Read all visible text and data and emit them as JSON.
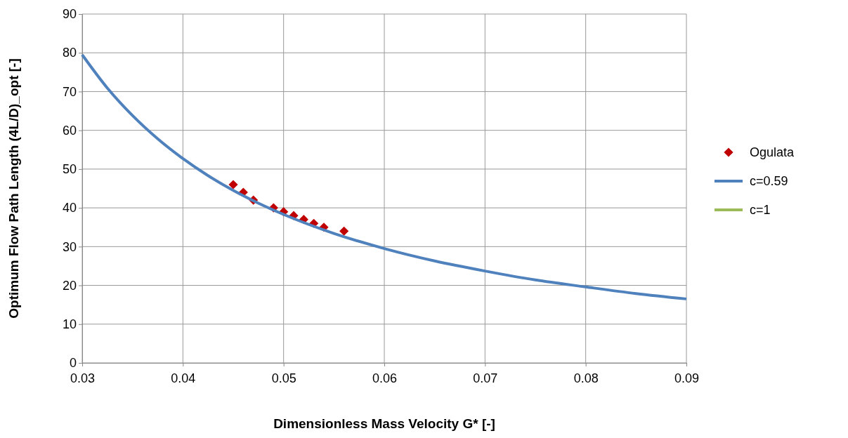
{
  "chart_data": {
    "type": "line",
    "xlabel": "Dimensionless Mass Velocity G* [-]",
    "ylabel": "Optimum Flow Path Length (4L/D)_opt [-]",
    "xlim": [
      0.03,
      0.09
    ],
    "xticks": [
      {
        "value": 0.03,
        "label": "0.03"
      },
      {
        "value": 0.04,
        "label": "0.04"
      },
      {
        "value": 0.05,
        "label": "0.05"
      },
      {
        "value": 0.06,
        "label": "0.06"
      },
      {
        "value": 0.07,
        "label": "0.07"
      },
      {
        "value": 0.08,
        "label": "0.08"
      },
      {
        "value": 0.09,
        "label": "0.09"
      }
    ],
    "ylim": [
      0,
      90
    ],
    "yticks": [
      0,
      10,
      20,
      30,
      40,
      50,
      60,
      70,
      80,
      90
    ],
    "grid": true,
    "legend": "right",
    "series": [
      {
        "name": "Ogulata",
        "type": "scatter",
        "marker": "diamond",
        "color": "#c00000",
        "x": [
          0.045,
          0.046,
          0.047,
          0.049,
          0.05,
          0.051,
          0.052,
          0.053,
          0.054,
          0.056
        ],
        "values": [
          46,
          44,
          42,
          40,
          39,
          38,
          37,
          36,
          35,
          34
        ]
      },
      {
        "name": "c=0.59",
        "marker": "none",
        "color": "#4f81bd",
        "x": [
          0.03,
          0.0325,
          0.035,
          0.0375,
          0.04,
          0.0425,
          0.045,
          0.0475,
          0.05,
          0.055,
          0.06,
          0.065,
          0.07,
          0.075,
          0.08,
          0.085,
          0.09
        ],
        "values": [
          79.5,
          70.9,
          63.8,
          57.8,
          52.7,
          48.3,
          44.5,
          41.2,
          38.3,
          33.4,
          29.5,
          26.3,
          23.7,
          21.4,
          19.6,
          17.9,
          16.5
        ]
      },
      {
        "name": "c=1",
        "type": "line",
        "marker": "none",
        "color": "#9bbb59"
      }
    ]
  }
}
